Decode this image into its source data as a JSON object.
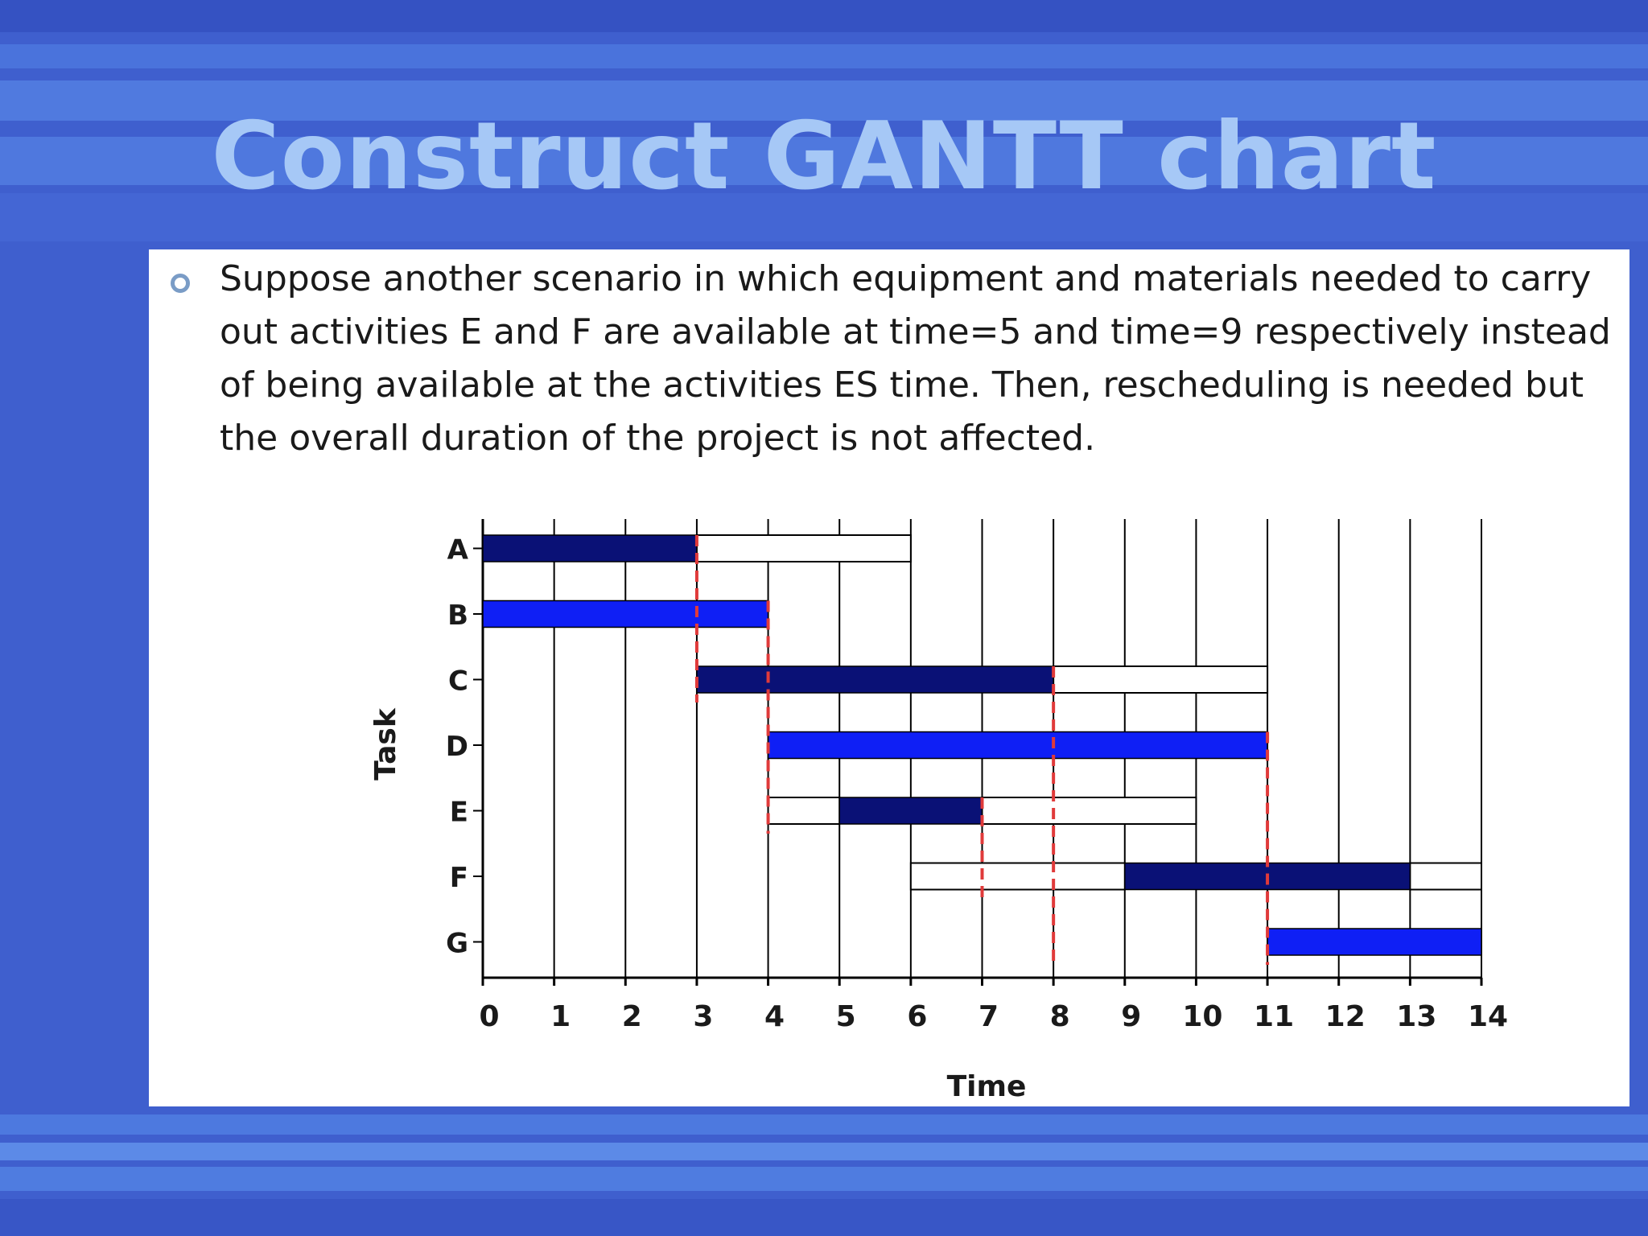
{
  "slide": {
    "title": "Construct GANTT chart",
    "bullet": "Suppose another scenario in which equipment and materials needed to carry out activities E and F are available at time=5 and time=9 respectively instead of being available at the activities ES time. Then, rescheduling is needed but the overall duration of the project is not affected."
  },
  "colors": {
    "background": "#3f5fce",
    "title": "#a6c8f6",
    "bar_dark": "#0a1176",
    "bar_bright": "#0f1ff5",
    "slack_outline": "#000000",
    "critical_line": "#e03a3a"
  },
  "chart_data": {
    "type": "gantt",
    "title": "",
    "xlabel": "Time",
    "ylabel": "Task",
    "xlim": [
      0,
      14
    ],
    "x_ticks": [
      "0",
      "1",
      "2",
      "3",
      "4",
      "5",
      "6",
      "7",
      "8",
      "9",
      "10",
      "11",
      "12",
      "13",
      "14"
    ],
    "grid": true,
    "tasks": [
      "A",
      "B",
      "C",
      "D",
      "E",
      "F",
      "G"
    ],
    "bars": [
      {
        "task": "A",
        "start": 0,
        "end": 3,
        "fill": "dark"
      },
      {
        "task": "B",
        "start": 0,
        "end": 4,
        "fill": "bright"
      },
      {
        "task": "C",
        "start": 3,
        "end": 8,
        "fill": "dark"
      },
      {
        "task": "D",
        "start": 4,
        "end": 11,
        "fill": "bright"
      },
      {
        "task": "E",
        "start": 5,
        "end": 7,
        "fill": "dark"
      },
      {
        "task": "F",
        "start": 9,
        "end": 13,
        "fill": "dark"
      },
      {
        "task": "G",
        "start": 11,
        "end": 14,
        "fill": "bright"
      }
    ],
    "slack": [
      {
        "task": "A",
        "start": 3,
        "end": 6
      },
      {
        "task": "C",
        "start": 8,
        "end": 11
      },
      {
        "task": "E",
        "start": 4,
        "end": 5
      },
      {
        "task": "E",
        "start": 7,
        "end": 10
      },
      {
        "task": "F",
        "start": 6,
        "end": 9
      },
      {
        "task": "F",
        "start": 13,
        "end": 14
      }
    ],
    "critical_lines": [
      {
        "x": 3,
        "from": "A",
        "to": "C"
      },
      {
        "x": 4,
        "from": "B",
        "to": "E"
      },
      {
        "x": 7,
        "from": "E",
        "to": "F"
      },
      {
        "x": 8,
        "from": "C",
        "to": "G"
      },
      {
        "x": 11,
        "from": "D",
        "to": "G"
      }
    ]
  }
}
